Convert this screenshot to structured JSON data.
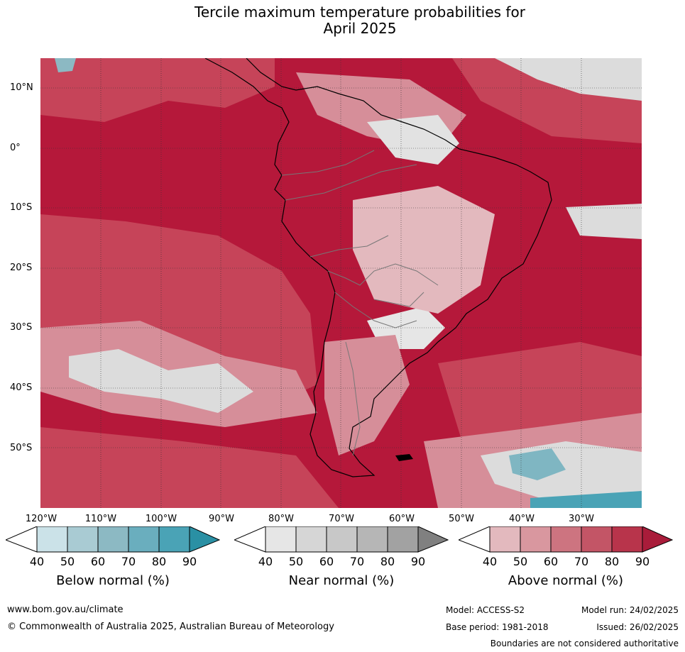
{
  "title_line1": "Tercile maximum temperature probabilities for",
  "title_line2": "April 2025",
  "map": {
    "lat_labels": [
      "10°N",
      "0°",
      "10°S",
      "20°S",
      "30°S",
      "40°S",
      "50°S"
    ],
    "lon_labels": [
      "120°W",
      "110°W",
      "100°W",
      "90°W",
      "80°W",
      "70°W",
      "60°W",
      "50°W",
      "40°W",
      "30°W"
    ],
    "colors": {
      "ocean_high": "#b5183a",
      "mid": "#c64459",
      "light": "#d68e99",
      "pale": "#e3b9be",
      "near_normal": "#dcdcdc",
      "below": "#4aa3b6"
    }
  },
  "legends": [
    {
      "title": "Below normal (%)",
      "ticks": [
        "40",
        "50",
        "60",
        "70",
        "80",
        "90"
      ],
      "colors": [
        "#ffffff",
        "#cbe2e8",
        "#a9cbd3",
        "#8cb9c3",
        "#6aaebe",
        "#4aa3b6",
        "#2a90a4"
      ]
    },
    {
      "title": "Near normal (%)",
      "ticks": [
        "40",
        "50",
        "60",
        "70",
        "80",
        "90"
      ],
      "colors": [
        "#ffffff",
        "#e6e6e6",
        "#d6d6d6",
        "#c8c8c8",
        "#b6b6b6",
        "#a2a2a2",
        "#808080"
      ]
    },
    {
      "title": "Above normal (%)",
      "ticks": [
        "40",
        "50",
        "60",
        "70",
        "80",
        "90"
      ],
      "colors": [
        "#ffffff",
        "#e3b9be",
        "#d9979f",
        "#cd7480",
        "#c35566",
        "#b8344b",
        "#a91c3a"
      ]
    }
  ],
  "footer": {
    "website": "www.bom.gov.au/climate",
    "copyright": "© Commonwealth of Australia 2025, Australian Bureau of Meteorology",
    "model": "Model: ACCESS-S2",
    "base_period": "Base period: 1981-2018",
    "model_run": "Model run: 24/02/2025",
    "issued": "Issued: 26/02/2025",
    "disclaimer": "Boundaries are not considered authoritative"
  }
}
